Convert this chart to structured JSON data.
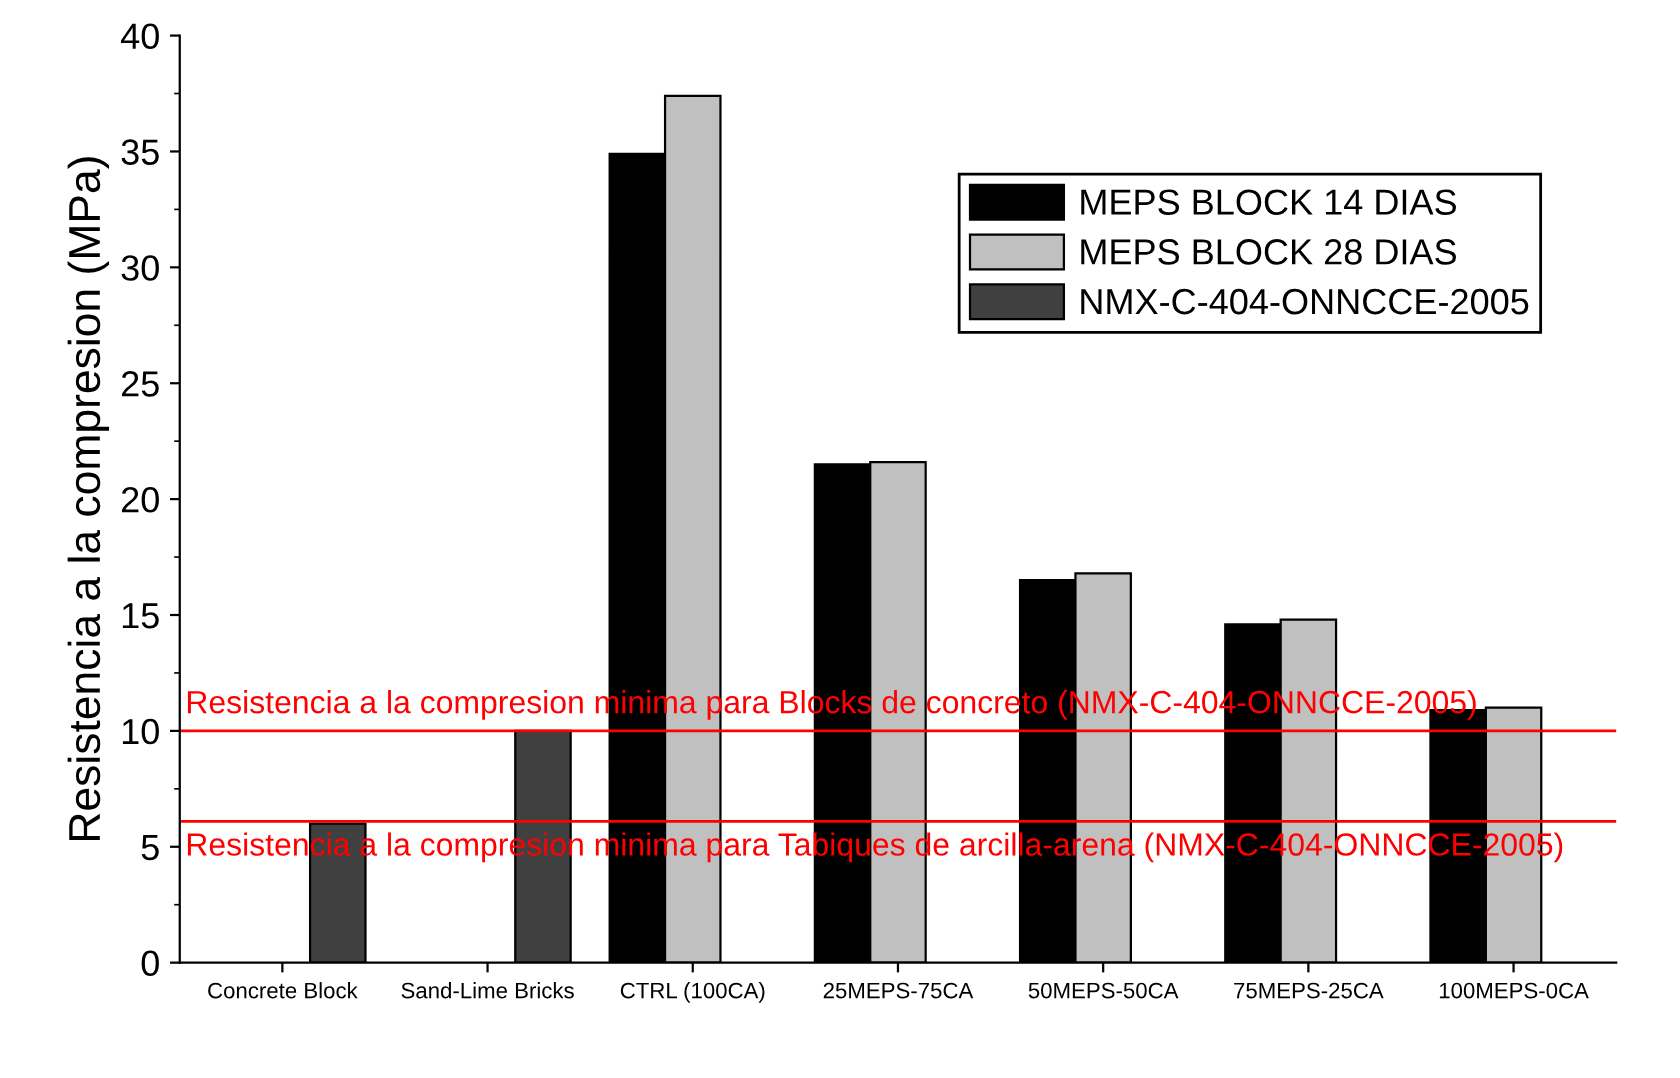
{
  "chart_data": {
    "type": "bar",
    "ylabel": "Resistencia a la compresion (MPa)",
    "categories": [
      "Concrete Block",
      "Sand-Lime Bricks",
      "CTRL (100CA)",
      "25MEPS-75CA",
      "50MEPS-50CA",
      "75MEPS-25CA",
      "100MEPS-0CA"
    ],
    "series": [
      {
        "name": "MEPS BLOCK 14 DIAS",
        "color": "#000000",
        "values": [
          null,
          null,
          34.9,
          21.5,
          16.5,
          14.6,
          10.9
        ]
      },
      {
        "name": "MEPS BLOCK 28 DIAS",
        "color": "#c0c0c0",
        "values": [
          null,
          null,
          37.4,
          21.6,
          16.8,
          14.8,
          11.0
        ]
      },
      {
        "name": "NMX-C-404-ONNCCE-2005",
        "color": "#404040",
        "values": [
          6,
          10,
          null,
          null,
          null,
          null,
          null
        ]
      }
    ],
    "ylim": [
      0,
      40
    ],
    "yticks": [
      0,
      5,
      10,
      15,
      20,
      25,
      30,
      35,
      40
    ],
    "legend": "top right",
    "grid": false,
    "ref_lines": [
      {
        "axis": "y",
        "value": 10,
        "label": "Resistencia a la compresion minima para Blocks de concreto (NMX-C-404-ONNCCE-2005)",
        "color": "#ff0000"
      },
      {
        "axis": "y",
        "value": 6.1,
        "label": "Resistencia a la compresion minima para Tabiques de arcilla-arena (NMX-C-404-ONNCCE-2005)",
        "color": "#ff0000"
      }
    ]
  }
}
